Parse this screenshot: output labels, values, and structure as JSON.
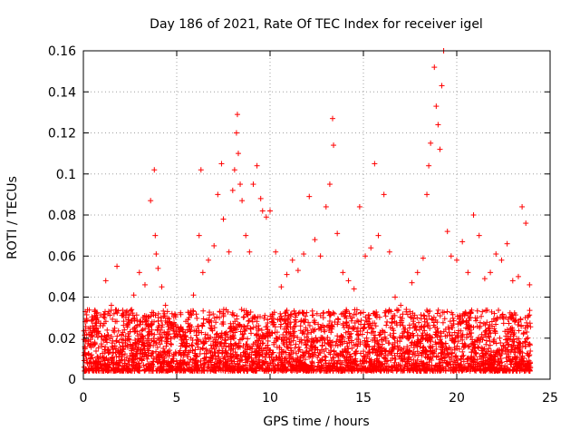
{
  "chart_data": {
    "type": "scatter",
    "title": "Day 186 of 2021, Rate Of TEC Index for receiver igel",
    "xlabel": "GPS time / hours",
    "ylabel": "ROTI / TECUs",
    "xlim": [
      0,
      25
    ],
    "ylim": [
      0,
      0.16
    ],
    "xticks": [
      "0",
      "5",
      "10",
      "15",
      "20",
      "25"
    ],
    "yticks": [
      "0",
      "0.02",
      "0.04",
      "0.06",
      "0.08",
      "0.1",
      "0.12",
      "0.14",
      "0.16"
    ],
    "grid": true,
    "marker": "plus",
    "color": "#ff0000",
    "series": [
      {
        "x": [
          0.1,
          0.3,
          0.6,
          0.9,
          1.2,
          1.5,
          1.8,
          2.1,
          2.4,
          2.7,
          3.0,
          3.3,
          3.6,
          3.8,
          3.85,
          3.9,
          4.0,
          4.2,
          4.4,
          4.7,
          5.0,
          5.3,
          5.6,
          5.9,
          6.2,
          6.3,
          6.4,
          6.7,
          7.0,
          7.2,
          7.4,
          7.5,
          7.8,
          8.0,
          8.1,
          8.2,
          8.25,
          8.3,
          8.4,
          8.5,
          8.7,
          8.9,
          9.1,
          9.3,
          9.5,
          9.6,
          9.8,
          10.0,
          10.3,
          10.6,
          10.9,
          11.2,
          11.5,
          11.8,
          12.1,
          12.4,
          12.7,
          13.0,
          13.2,
          13.35,
          13.4,
          13.6,
          13.9,
          14.2,
          14.5,
          14.8,
          15.1,
          15.4,
          15.6,
          15.8,
          16.1,
          16.4,
          16.7,
          17.0,
          17.3,
          17.6,
          17.9,
          18.2,
          18.4,
          18.5,
          18.6,
          18.8,
          18.9,
          19.0,
          19.1,
          19.2,
          19.3,
          19.5,
          19.7,
          20.0,
          20.3,
          20.6,
          20.9,
          21.2,
          21.5,
          21.8,
          22.1,
          22.4,
          22.7,
          23.0,
          23.3,
          23.5,
          23.7,
          23.9
        ],
        "y": [
          0.028,
          0.022,
          0.031,
          0.026,
          0.048,
          0.036,
          0.055,
          0.031,
          0.029,
          0.041,
          0.052,
          0.046,
          0.087,
          0.102,
          0.07,
          0.061,
          0.054,
          0.045,
          0.036,
          0.027,
          0.022,
          0.024,
          0.029,
          0.041,
          0.07,
          0.102,
          0.052,
          0.058,
          0.065,
          0.09,
          0.105,
          0.078,
          0.062,
          0.092,
          0.102,
          0.12,
          0.129,
          0.11,
          0.095,
          0.087,
          0.07,
          0.062,
          0.095,
          0.104,
          0.088,
          0.082,
          0.079,
          0.082,
          0.062,
          0.045,
          0.051,
          0.058,
          0.053,
          0.061,
          0.089,
          0.068,
          0.06,
          0.084,
          0.095,
          0.127,
          0.114,
          0.071,
          0.052,
          0.048,
          0.044,
          0.084,
          0.06,
          0.064,
          0.105,
          0.07,
          0.09,
          0.062,
          0.04,
          0.036,
          0.034,
          0.047,
          0.052,
          0.059,
          0.09,
          0.104,
          0.115,
          0.152,
          0.133,
          0.124,
          0.112,
          0.143,
          0.16,
          0.072,
          0.06,
          0.058,
          0.067,
          0.052,
          0.08,
          0.07,
          0.049,
          0.052,
          0.061,
          0.058,
          0.066,
          0.048,
          0.05,
          0.084,
          0.076,
          0.046
        ]
      }
    ]
  }
}
